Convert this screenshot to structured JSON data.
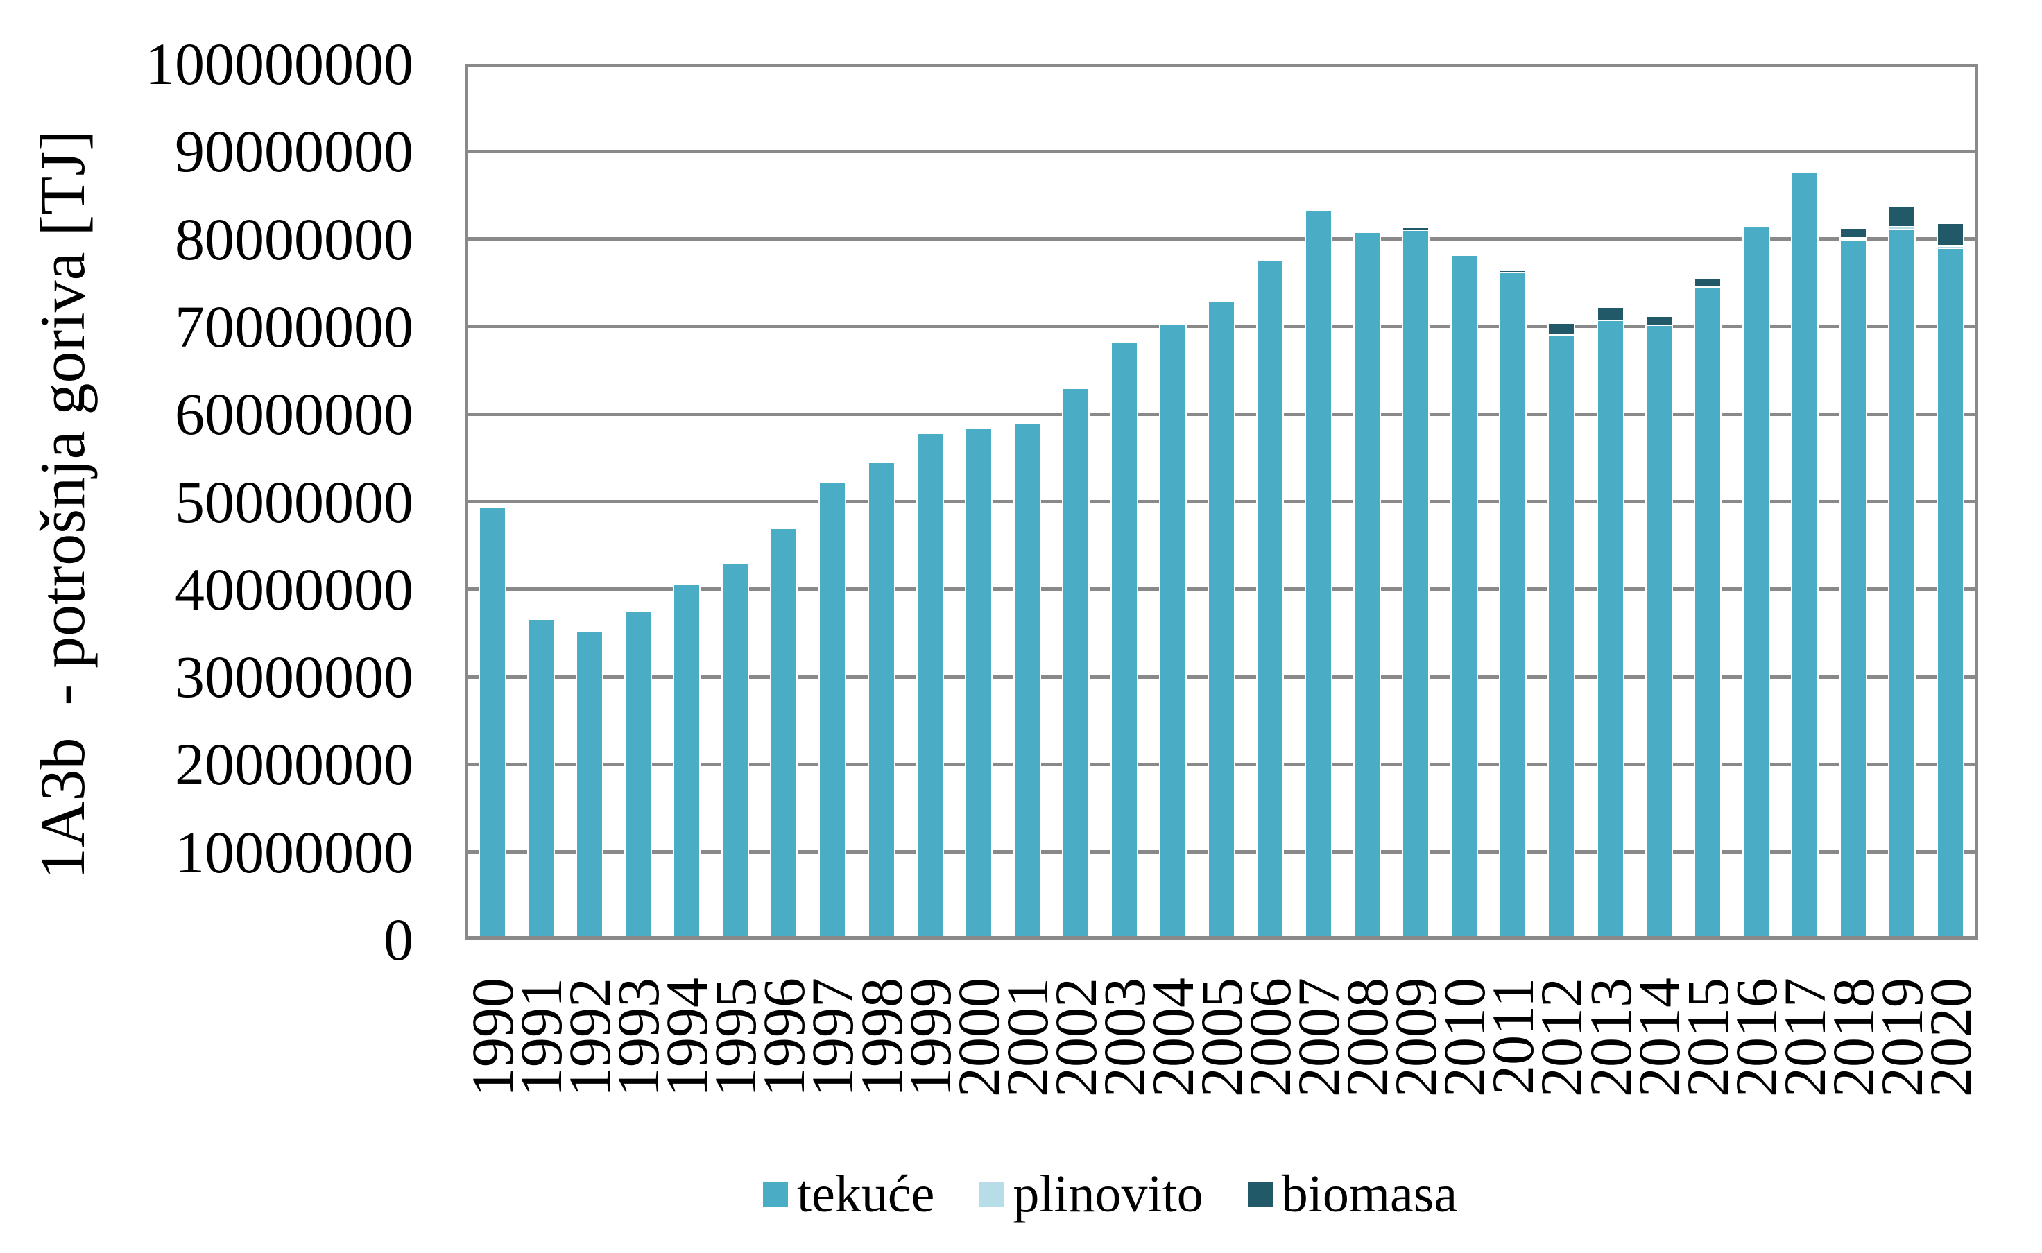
{
  "colors": {
    "grid": "#898989",
    "axis": "#898989",
    "background": "#FFFFFF",
    "bar_border": "#FFFFFF"
  },
  "y_axis": {
    "title": "1A3b  - potrošnja goriva [TJ]",
    "tick_labels": [
      "0",
      "10000000",
      "20000000",
      "30000000",
      "40000000",
      "50000000",
      "60000000",
      "70000000",
      "80000000",
      "90000000",
      "100000000"
    ]
  },
  "chart_data": {
    "type": "bar",
    "stacked": true,
    "title": "",
    "xlabel": "",
    "ylabel": "1A3b  - potrošnja goriva [TJ]",
    "ylim": [
      0,
      100000000
    ],
    "ytick_step": 10000000,
    "grid": true,
    "legend_position": "bottom-center",
    "categories": [
      "1990",
      "1991",
      "1992",
      "1993",
      "1994",
      "1995",
      "1996",
      "1997",
      "1998",
      "1999",
      "2000",
      "2001",
      "2002",
      "2003",
      "2004",
      "2005",
      "2006",
      "2007",
      "2008",
      "2009",
      "2010",
      "2011",
      "2012",
      "2013",
      "2014",
      "2015",
      "2016",
      "2017",
      "2018",
      "2019",
      "2020"
    ],
    "series": [
      {
        "name": "tekuće",
        "color": "#4BACC6",
        "values": [
          49000000,
          36300000,
          34900000,
          37200000,
          40300000,
          42700000,
          46600000,
          51900000,
          54200000,
          57500000,
          58000000,
          58700000,
          62600000,
          67900000,
          69900000,
          72500000,
          77300000,
          83000000,
          80450000,
          80700000,
          77850000,
          75850000,
          68750000,
          70400000,
          69800000,
          74100000,
          81150000,
          87300000,
          79550000,
          80800000,
          78600000
        ]
      },
      {
        "name": "plinovito",
        "color": "#B7DEE8",
        "values": [
          0,
          0,
          0,
          0,
          0,
          0,
          0,
          0,
          0,
          0,
          0,
          0,
          0,
          0,
          0,
          0,
          0,
          0,
          150000,
          0,
          250000,
          0,
          0,
          0,
          0,
          200000,
          250000,
          300000,
          250000,
          260000,
          270000
        ]
      },
      {
        "name": "biomasa",
        "color": "#215968",
        "values": [
          0,
          0,
          0,
          0,
          0,
          0,
          0,
          0,
          0,
          0,
          0,
          0,
          0,
          0,
          0,
          0,
          0,
          200000,
          0,
          300000,
          0,
          250000,
          1310000,
          1500000,
          1100000,
          900000,
          0,
          0,
          1100000,
          2400000,
          2600000
        ]
      }
    ]
  }
}
